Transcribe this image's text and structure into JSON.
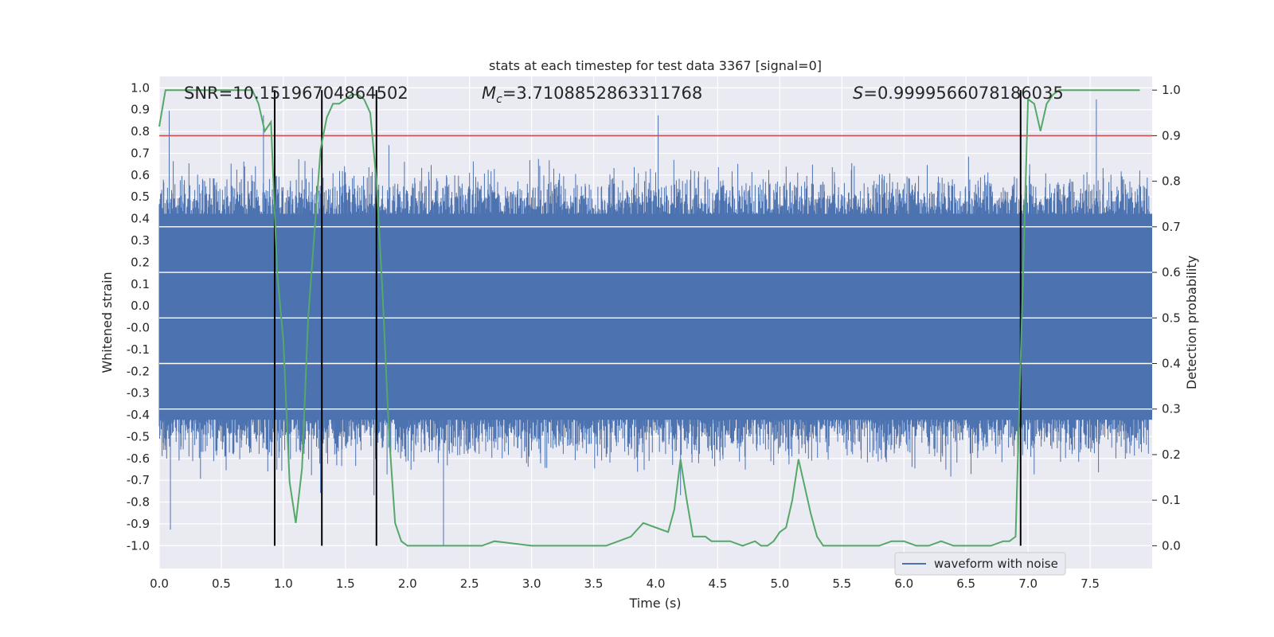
{
  "chart_data": {
    "type": "line",
    "title": "stats at each timestep for test data 3367 [signal=0]",
    "xlabel": "Time (s)",
    "ylabel": "Whitened strain",
    "y2label": "Detection probability",
    "xlim": [
      0.0,
      8.0
    ],
    "ylim": [
      -1.1,
      1.05
    ],
    "y2lim": [
      -0.05,
      1.03
    ],
    "x_ticks": [
      "0.0",
      "0.5",
      "1.0",
      "1.5",
      "2.0",
      "2.5",
      "3.0",
      "3.5",
      "4.0",
      "4.5",
      "5.0",
      "5.5",
      "6.0",
      "6.5",
      "7.0",
      "7.5"
    ],
    "y_ticks": [
      "1.0",
      "0.9",
      "0.8",
      "0.7",
      "0.6",
      "0.5",
      "0.4",
      "0.3",
      "0.2",
      "0.1",
      "0.0",
      "-0.0",
      "-0.1",
      "-0.2",
      "-0.3",
      "-0.4",
      "-0.5",
      "-0.6",
      "-0.7",
      "-0.8",
      "-0.9",
      "-1.0"
    ],
    "y2_ticks": [
      "1.0",
      "0.9",
      "0.8",
      "0.7",
      "0.6",
      "0.5",
      "0.4",
      "0.3",
      "0.2",
      "0.1",
      "0.0"
    ],
    "annotations": {
      "snr": "SNR=10.15196704864502",
      "mc_symbol": "M",
      "mc_sub": "c",
      "mc_value": "=3.7108852863311768",
      "s_symbol": "S",
      "s_value": "=0.9999566078186035"
    },
    "threshold": 0.9,
    "vlines": [
      0.93,
      1.31,
      1.75,
      6.94
    ],
    "series": [
      {
        "name": "waveform with noise",
        "axis": "left",
        "color": "#4c72b0",
        "description": "whitened strain noise, approx. range -1.0 to 0.9",
        "envelope": [
          0.55,
          -0.55
        ],
        "peaks_x": [
          0.08,
          0.84,
          1.85,
          4.02,
          7.55
        ],
        "peaks_y": [
          0.9,
          0.88,
          0.75,
          0.88,
          0.95
        ],
        "troughs_x": [
          0.09,
          1.3,
          1.73,
          2.29,
          4.2
        ],
        "troughs_y": [
          -0.93,
          -0.77,
          -0.78,
          -1.0,
          -0.78
        ]
      },
      {
        "name": "detection probability",
        "axis": "right",
        "color": "#55a868",
        "x": [
          0.0,
          0.05,
          0.1,
          0.3,
          0.5,
          0.6,
          0.75,
          0.8,
          0.85,
          0.9,
          0.95,
          1.0,
          1.05,
          1.1,
          1.15,
          1.2,
          1.3,
          1.35,
          1.4,
          1.45,
          1.5,
          1.55,
          1.6,
          1.65,
          1.7,
          1.75,
          1.8,
          1.85,
          1.9,
          1.95,
          2.0,
          2.05,
          2.2,
          2.4,
          2.5,
          2.6,
          2.7,
          3.0,
          3.2,
          3.5,
          3.6,
          3.7,
          3.8,
          3.9,
          4.0,
          4.1,
          4.15,
          4.2,
          4.25,
          4.3,
          4.35,
          4.4,
          4.45,
          4.5,
          4.6,
          4.7,
          4.8,
          4.85,
          4.9,
          4.95,
          5.0,
          5.05,
          5.1,
          5.15,
          5.2,
          5.25,
          5.3,
          5.35,
          5.4,
          5.6,
          5.7,
          5.8,
          5.9,
          6.0,
          6.1,
          6.2,
          6.3,
          6.4,
          6.5,
          6.6,
          6.7,
          6.8,
          6.85,
          6.9,
          6.95,
          7.0,
          7.05,
          7.1,
          7.15,
          7.2,
          7.25,
          7.3,
          7.35,
          7.4,
          7.5,
          7.6,
          7.7,
          7.8,
          7.9
        ],
        "y": [
          0.92,
          1.0,
          1.0,
          1.0,
          1.0,
          1.0,
          1.0,
          0.97,
          0.91,
          0.93,
          0.6,
          0.45,
          0.14,
          0.05,
          0.17,
          0.5,
          0.87,
          0.94,
          0.97,
          0.97,
          0.98,
          0.99,
          0.99,
          0.98,
          0.95,
          0.8,
          0.55,
          0.25,
          0.05,
          0.01,
          0.0,
          0.0,
          0.0,
          0.0,
          0.0,
          0.0,
          0.01,
          0.0,
          0.0,
          0.0,
          0.0,
          0.01,
          0.02,
          0.05,
          0.04,
          0.03,
          0.08,
          0.19,
          0.1,
          0.02,
          0.02,
          0.02,
          0.01,
          0.01,
          0.01,
          0.0,
          0.01,
          0.0,
          0.0,
          0.01,
          0.03,
          0.04,
          0.1,
          0.19,
          0.13,
          0.07,
          0.02,
          0.0,
          0.0,
          0.0,
          0.0,
          0.0,
          0.01,
          0.01,
          0.0,
          0.0,
          0.01,
          0.0,
          0.0,
          0.0,
          0.0,
          0.01,
          0.01,
          0.02,
          0.5,
          0.98,
          0.97,
          0.91,
          0.97,
          0.99,
          1.0,
          1.0,
          1.0,
          1.0,
          1.0,
          1.0,
          1.0,
          1.0,
          1.0
        ]
      }
    ],
    "legend": {
      "label": "waveform with noise",
      "placement": "lower-right"
    }
  }
}
